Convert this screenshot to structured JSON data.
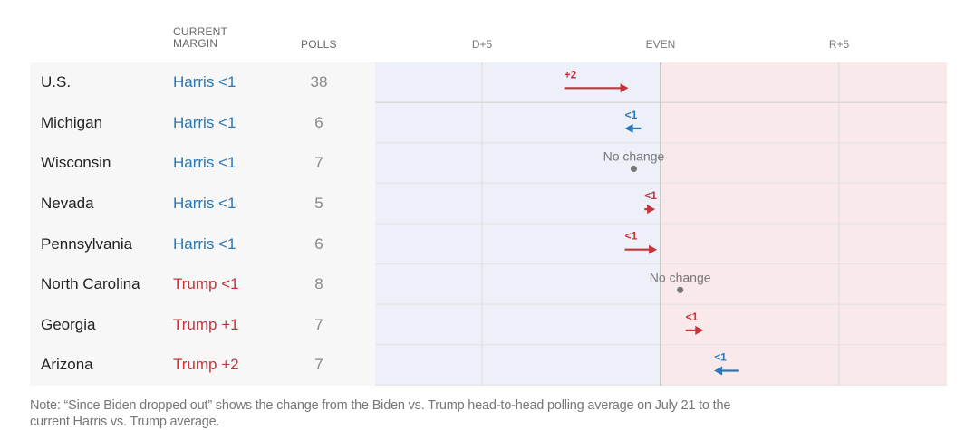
{
  "headers": {
    "current_margin_line1": "CURRENT",
    "current_margin_line2": "MARGIN",
    "polls": "POLLS"
  },
  "colors": {
    "dem": "#2a78b5",
    "rep": "#c8323a",
    "neutral": "#777777",
    "dem_bg": "#edf0f9",
    "rep_bg": "#fae9ea"
  },
  "rows": [
    {
      "state": "U.S.",
      "margin": "Harris <1",
      "party": "dem",
      "polls": "38"
    },
    {
      "state": "Michigan",
      "margin": "Harris <1",
      "party": "dem",
      "polls": "6"
    },
    {
      "state": "Wisconsin",
      "margin": "Harris <1",
      "party": "dem",
      "polls": "7"
    },
    {
      "state": "Nevada",
      "margin": "Harris <1",
      "party": "dem",
      "polls": "5"
    },
    {
      "state": "Pennsylvania",
      "margin": "Harris <1",
      "party": "dem",
      "polls": "6"
    },
    {
      "state": "North Carolina",
      "margin": "Trump <1",
      "party": "rep",
      "polls": "8"
    },
    {
      "state": "Georgia",
      "margin": "Trump +1",
      "party": "rep",
      "polls": "7"
    },
    {
      "state": "Arizona",
      "margin": "Trump +2",
      "party": "rep",
      "polls": "7"
    }
  ],
  "chart_data": {
    "type": "arrow",
    "title": "",
    "xlabel": "",
    "x_ticks": [
      {
        "value": -5,
        "label": "D+5"
      },
      {
        "value": 0,
        "label": "EVEN"
      },
      {
        "value": 5,
        "label": "R+5"
      }
    ],
    "xlim": [
      -8,
      8
    ],
    "value_convention": "negative = Democratic lead, positive = Republican lead (margin points)",
    "series": [
      {
        "name": "U.S.",
        "from": -2.7,
        "to": -0.9,
        "label": "+2",
        "direction": "rep"
      },
      {
        "name": "Michigan",
        "from": -0.55,
        "to": -1.0,
        "label": "<1",
        "direction": "dem"
      },
      {
        "name": "Wisconsin",
        "from": -0.75,
        "to": -0.75,
        "label": "No change",
        "direction": "none"
      },
      {
        "name": "Nevada",
        "from": -0.45,
        "to": -0.15,
        "label": "<1",
        "direction": "rep"
      },
      {
        "name": "Pennsylvania",
        "from": -1.0,
        "to": -0.1,
        "label": "<1",
        "direction": "rep"
      },
      {
        "name": "North Carolina",
        "from": 0.55,
        "to": 0.55,
        "label": "No change",
        "direction": "none"
      },
      {
        "name": "Georgia",
        "from": 0.7,
        "to": 1.2,
        "label": "<1",
        "direction": "rep"
      },
      {
        "name": "Arizona",
        "from": 2.2,
        "to": 1.5,
        "label": "<1",
        "direction": "dem"
      }
    ]
  },
  "note": "Note: “Since Biden dropped out” shows the change from the Biden vs. Trump head-to-head polling average on July 21 to the current Harris vs. Trump average."
}
